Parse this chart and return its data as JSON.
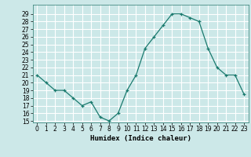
{
  "x": [
    0,
    1,
    2,
    3,
    4,
    5,
    6,
    7,
    8,
    9,
    10,
    11,
    12,
    13,
    14,
    15,
    16,
    17,
    18,
    19,
    20,
    21,
    22,
    23
  ],
  "y": [
    21,
    20,
    19,
    19,
    18,
    17,
    17.5,
    15.5,
    15,
    16,
    19,
    21,
    24.5,
    26,
    27.5,
    29,
    29,
    28.5,
    28,
    24.5,
    22,
    21,
    21,
    18.5
  ],
  "xlabel": "Humidex (Indice chaleur)",
  "xlim": [
    -0.5,
    23.5
  ],
  "ylim": [
    14.8,
    30.2
  ],
  "yticks": [
    15,
    16,
    17,
    18,
    19,
    20,
    21,
    22,
    23,
    24,
    25,
    26,
    27,
    28,
    29
  ],
  "xticks": [
    0,
    1,
    2,
    3,
    4,
    5,
    6,
    7,
    8,
    9,
    10,
    11,
    12,
    13,
    14,
    15,
    16,
    17,
    18,
    19,
    20,
    21,
    22,
    23
  ],
  "line_color": "#1a7a6e",
  "marker": "+",
  "bg_color": "#cce8e8",
  "grid_color": "#ffffff",
  "label_fontsize": 6.5,
  "tick_fontsize": 5.5
}
